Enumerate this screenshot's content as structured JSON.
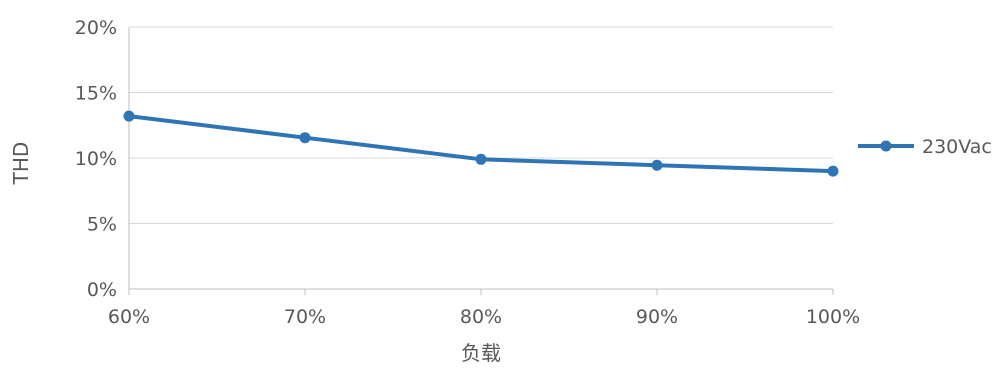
{
  "chart_data": {
    "type": "line",
    "xlabel": "负载",
    "ylabel": "THD",
    "categories": [
      "60%",
      "70%",
      "80%",
      "90%",
      "100%"
    ],
    "series": [
      {
        "name": "230Vac",
        "values": [
          13.2,
          11.55,
          9.9,
          9.45,
          9.0
        ],
        "color": "#2e75b6"
      }
    ],
    "ylim": [
      0,
      20
    ],
    "yticks": [
      0,
      5,
      10,
      15,
      20
    ],
    "ytick_labels": [
      "0%",
      "5%",
      "10%",
      "15%",
      "20%"
    ],
    "grid": true,
    "legend_position": "right"
  }
}
